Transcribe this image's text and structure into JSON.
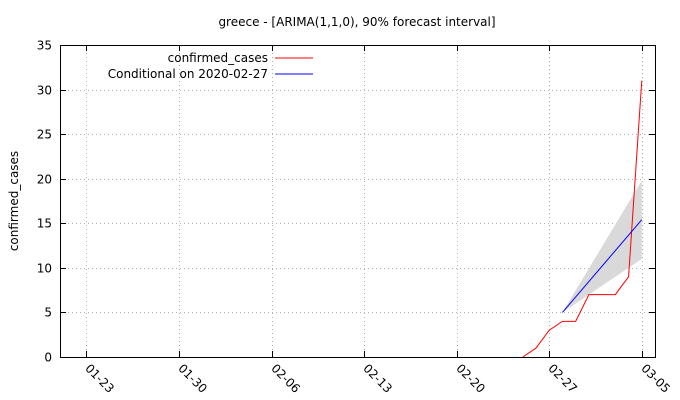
{
  "chart_data": {
    "type": "line",
    "title": "greece -  [ARIMA(1,1,0), 90% forecast interval]",
    "xlabel": "",
    "ylabel": "confirmed_cases",
    "x_tick_labels": [
      "01-23",
      "01-30",
      "02-06",
      "02-13",
      "02-20",
      "02-27",
      "03-05"
    ],
    "x_tick_dates": [
      "2020-01-23",
      "2020-01-30",
      "2020-02-06",
      "2020-02-13",
      "2020-02-20",
      "2020-02-27",
      "2020-03-05"
    ],
    "xlim": [
      "2020-01-21",
      "2020-03-06"
    ],
    "ylim": [
      0,
      35
    ],
    "y_ticks": [
      0,
      5,
      10,
      15,
      20,
      25,
      30,
      35
    ],
    "grid": true,
    "legend_position": "top-left",
    "series": [
      {
        "name": "confirmed_cases",
        "color": "#ff0000",
        "x": [
          "2020-02-25",
          "2020-02-26",
          "2020-02-27",
          "2020-02-28",
          "2020-02-29",
          "2020-03-01",
          "2020-03-02",
          "2020-03-03",
          "2020-03-04",
          "2020-03-05"
        ],
        "y": [
          0,
          1,
          3,
          4,
          4,
          7,
          7,
          7,
          9,
          31
        ]
      },
      {
        "name": "Conditional on 2020-02-27",
        "color": "#0000ff",
        "x": [
          "2020-02-28",
          "2020-03-05"
        ],
        "y": [
          5,
          15.4
        ]
      }
    ],
    "forecast_interval": {
      "color": "#d9d9d9",
      "x": [
        "2020-02-28",
        "2020-03-05"
      ],
      "lower": [
        5,
        11
      ],
      "upper": [
        5,
        19.8
      ]
    }
  }
}
